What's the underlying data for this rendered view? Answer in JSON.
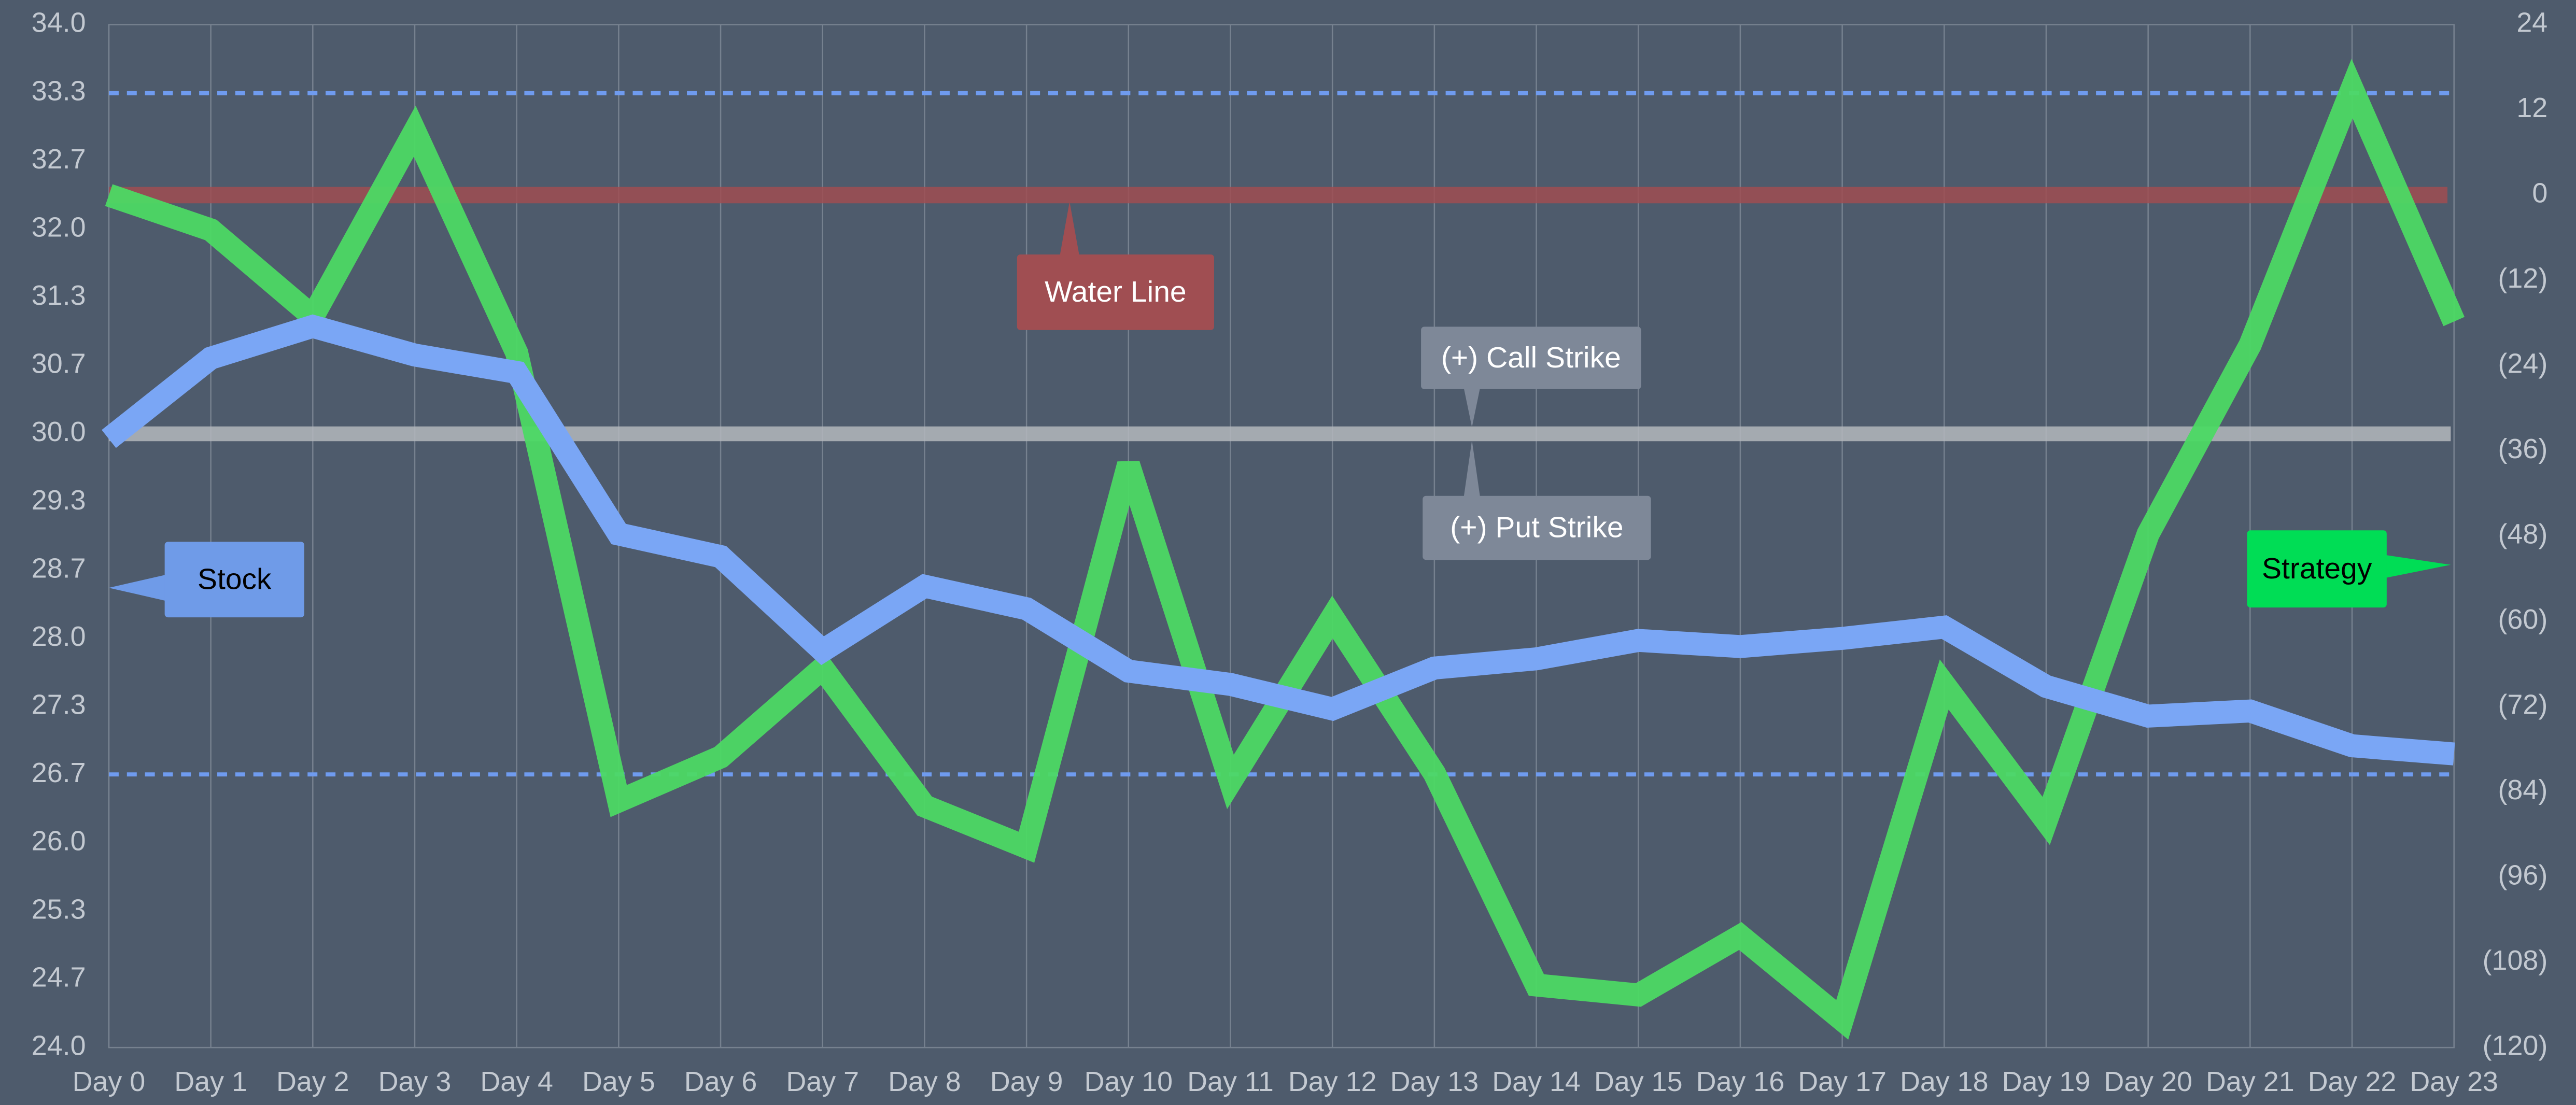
{
  "chart_data": {
    "type": "line",
    "categories": [
      "Day 0",
      "Day 1",
      "Day 2",
      "Day 3",
      "Day 4",
      "Day 5",
      "Day 6",
      "Day 7",
      "Day 8",
      "Day 9",
      "Day 10",
      "Day 11",
      "Day 12",
      "Day 13",
      "Day 14",
      "Day 15",
      "Day 16",
      "Day 17",
      "Day 18",
      "Day 19",
      "Day 20",
      "Day 21",
      "Day 22",
      "Day 23"
    ],
    "ylim": [
      24,
      34
    ],
    "yticks": [
      {
        "value": 24,
        "label": "24.0"
      },
      {
        "value": 24.667,
        "label": "24.7"
      },
      {
        "value": 25.333,
        "label": "25.3"
      },
      {
        "value": 26,
        "label": "26.0"
      },
      {
        "value": 26.667,
        "label": "26.7"
      },
      {
        "value": 27.333,
        "label": "27.3"
      },
      {
        "value": 28,
        "label": "28.0"
      },
      {
        "value": 28.667,
        "label": "28.7"
      },
      {
        "value": 29.333,
        "label": "29.3"
      },
      {
        "value": 30,
        "label": "30.0"
      },
      {
        "value": 30.667,
        "label": "30.7"
      },
      {
        "value": 31.333,
        "label": "31.3"
      },
      {
        "value": 32,
        "label": "32.0"
      },
      {
        "value": 32.667,
        "label": "32.7"
      },
      {
        "value": 33.333,
        "label": "33.3"
      },
      {
        "value": 34,
        "label": "34.0"
      }
    ],
    "y2lim": [
      -120,
      24
    ],
    "y2ticks": [
      24,
      12,
      0,
      {
        "value": -12,
        "label": "(12)"
      },
      {
        "value": -24,
        "label": "(24)"
      },
      {
        "value": -36,
        "label": "(36)"
      },
      {
        "value": -48,
        "label": "(48)"
      },
      {
        "value": -60,
        "label": "(60)"
      },
      {
        "value": -72,
        "label": "(72)"
      },
      {
        "value": -84,
        "label": "(84)"
      },
      {
        "value": -96,
        "label": "(96)"
      },
      {
        "value": -108,
        "label": "(108)"
      },
      {
        "value": -120,
        "label": "(120)"
      }
    ],
    "grid": true,
    "series": [
      {
        "name": "Stock",
        "color": "#7aa6f5",
        "values": [
          29.95,
          30.74,
          31.05,
          30.77,
          30.6,
          29.02,
          28.8,
          27.88,
          28.51,
          28.29,
          27.68,
          27.55,
          27.31,
          27.71,
          27.8,
          27.98,
          27.92,
          28.0,
          28.11,
          27.53,
          27.24,
          27.29,
          26.95,
          26.87
        ]
      },
      {
        "name": "Strategy",
        "color": "#4cd964",
        "axis": "y2",
        "values": [
          0,
          -4.9,
          -17.1,
          9.0,
          -22.2,
          -85.3,
          -79.1,
          -66.6,
          -86.0,
          -91.8,
          -37.9,
          -82.6,
          -59.4,
          -81.4,
          -111.2,
          -112.6,
          -104.3,
          -116.1,
          -68.9,
          -88.1,
          -47.7,
          -21.1,
          15.0,
          -17.8
        ]
      }
    ],
    "water_line": {
      "label": "Water Line",
      "value": 0,
      "axis": "y2",
      "color": "#a04e52"
    },
    "strike_line": {
      "value": 30,
      "color": "#b4b8bd",
      "call_label": "(+) Call Strike",
      "put_label": "(+) Put Strike"
    },
    "dashed_lines": {
      "color": "#6f9bef",
      "values": [
        33.33,
        26.67
      ]
    }
  }
}
